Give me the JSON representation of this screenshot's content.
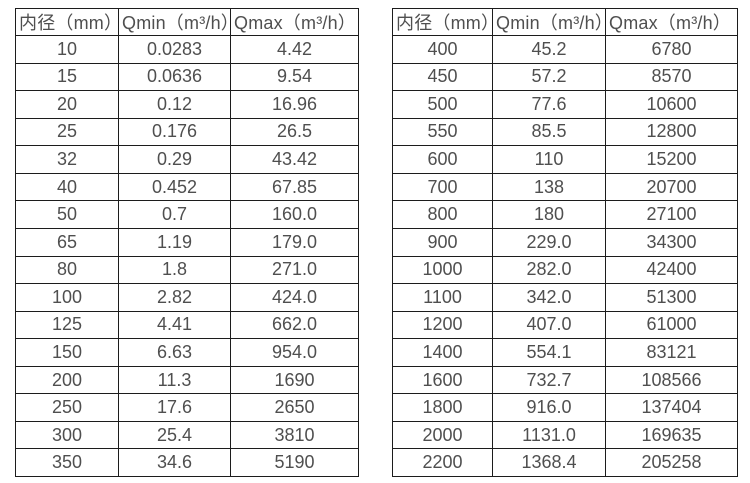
{
  "page": {
    "background_color": "#ffffff",
    "border_color": "#1c1c1c",
    "text_color": "#4f4f4f"
  },
  "tables": [
    {
      "name": "flow-table-small-diameters",
      "headers": [
        "内径（mm）",
        "Qmin（m³/h）",
        "Qmax（m³/h）"
      ],
      "rows": [
        [
          "10",
          "0.0283",
          "4.42"
        ],
        [
          "15",
          "0.0636",
          "9.54"
        ],
        [
          "20",
          "0.12",
          "16.96"
        ],
        [
          "25",
          "0.176",
          "26.5"
        ],
        [
          "32",
          "0.29",
          "43.42"
        ],
        [
          "40",
          "0.452",
          "67.85"
        ],
        [
          "50",
          "0.7",
          "160.0"
        ],
        [
          "65",
          "1.19",
          "179.0"
        ],
        [
          "80",
          "1.8",
          "271.0"
        ],
        [
          "100",
          "2.82",
          "424.0"
        ],
        [
          "125",
          "4.41",
          "662.0"
        ],
        [
          "150",
          "6.63",
          "954.0"
        ],
        [
          "200",
          "11.3",
          "1690"
        ],
        [
          "250",
          "17.6",
          "2650"
        ],
        [
          "300",
          "25.4",
          "3810"
        ],
        [
          "350",
          "34.6",
          "5190"
        ]
      ]
    },
    {
      "name": "flow-table-large-diameters",
      "headers": [
        "内径（mm）",
        "Qmin（m³/h）",
        "Qmax（m³/h）"
      ],
      "rows": [
        [
          "400",
          "45.2",
          "6780"
        ],
        [
          "450",
          "57.2",
          "8570"
        ],
        [
          "500",
          "77.6",
          "10600"
        ],
        [
          "550",
          "85.5",
          "12800"
        ],
        [
          "600",
          "110",
          "15200"
        ],
        [
          "700",
          "138",
          "20700"
        ],
        [
          "800",
          "180",
          "27100"
        ],
        [
          "900",
          "229.0",
          "34300"
        ],
        [
          "1000",
          "282.0",
          "42400"
        ],
        [
          "1100",
          "342.0",
          "51300"
        ],
        [
          "1200",
          "407.0",
          "61000"
        ],
        [
          "1400",
          "554.1",
          "83121"
        ],
        [
          "1600",
          "732.7",
          "108566"
        ],
        [
          "1800",
          "916.0",
          "137404"
        ],
        [
          "2000",
          "1131.0",
          "169635"
        ],
        [
          "2200",
          "1368.4",
          "205258"
        ]
      ]
    }
  ],
  "layout": {
    "left_table_col_widths": [
      103,
      112,
      128
    ],
    "right_table_col_widths": [
      100,
      113,
      132
    ]
  }
}
